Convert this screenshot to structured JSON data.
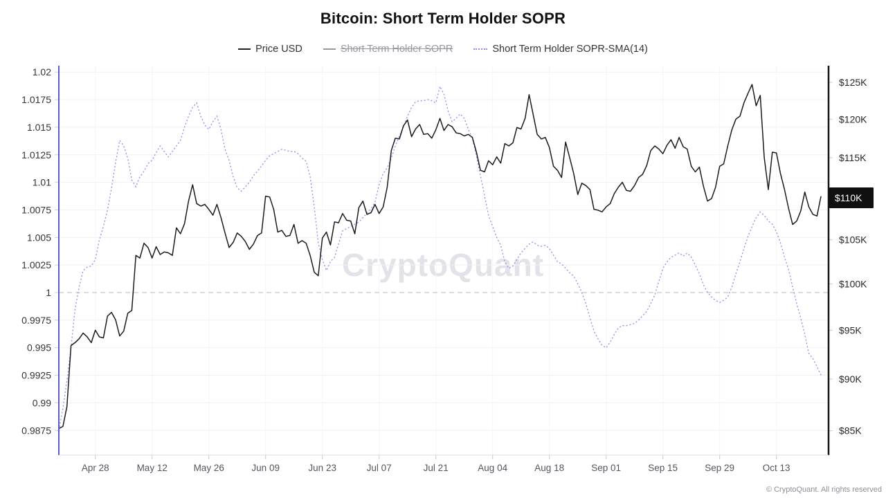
{
  "header": {
    "title": "Bitcoin: Short Term Holder SOPR"
  },
  "legend": [
    {
      "label": "Price USD",
      "color": "#222222",
      "style": "solid",
      "disabled": false
    },
    {
      "label": "Short Term Holder SOPR",
      "color": "#96969e",
      "style": "solid",
      "disabled": true
    },
    {
      "label": "Short Term Holder SOPR-SMA(14)",
      "color": "#8c8cf0",
      "style": "dotted",
      "disabled": false
    }
  ],
  "watermark": "CryptoQuant",
  "footer": "© CryptoQuant. All rights reserved",
  "price_badge": "$110K",
  "colors": {
    "price_line": "#1a1a1a",
    "sma_line": "#8c8cf0",
    "left_spine": "#5c5ccd",
    "right_spine": "#161616",
    "gridline": "#f1f1f4",
    "baseline_dashed": "#c6c6cc",
    "badge_bg": "#101010",
    "badge_text": "#ffffff"
  },
  "axes": {
    "left_ticks": [
      "1.02",
      "1.0175",
      "1.015",
      "1.0125",
      "1.01",
      "1.0075",
      "1.005",
      "1.0025",
      "1",
      "0.9975",
      "0.995",
      "0.9925",
      "0.99",
      "0.9875"
    ],
    "right_ticks": [
      "$125K",
      "$120K",
      "$115K",
      "$110K",
      "$105K",
      "$100K",
      "$95K",
      "$90K",
      "$85K"
    ],
    "x_ticks": [
      "Apr 28",
      "May 12",
      "May 26",
      "Jun 09",
      "Jun 23",
      "Jul 07",
      "Jul 21",
      "Aug 04",
      "Aug 18",
      "Sep 01",
      "Sep 15",
      "Sep 29",
      "Oct 13"
    ]
  },
  "chart_data": {
    "type": "line",
    "title": "Bitcoin: Short Term Holder SOPR",
    "legend_position": "top",
    "grid": true,
    "x_tick_labels": [
      "Apr 28",
      "May 12",
      "May 26",
      "Jun 09",
      "Jun 23",
      "Jul 07",
      "Jul 21",
      "Aug 04",
      "Aug 18",
      "Sep 01",
      "Sep 15",
      "Sep 29",
      "Oct 13"
    ],
    "x_tick_day_index": [
      9,
      23,
      37,
      51,
      65,
      79,
      93,
      107,
      121,
      135,
      149,
      163,
      177
    ],
    "left_axis": {
      "title": "SOPR",
      "scale": "linear",
      "range": [
        0.98625,
        1.0206
      ],
      "baseline": 1.0,
      "tick_step": 0.0025
    },
    "right_axis": {
      "title": "Price USD",
      "scale": "log",
      "range_thousand_usd": [
        84.2,
        126.3
      ],
      "tick_step_thousand_usd": 5
    },
    "series": [
      {
        "name": "Price USD",
        "axis": "right",
        "color": "#1a1a1a",
        "style": "solid",
        "disabled": false,
        "unit": "thousand USD",
        "values": [
          85.2,
          85.4,
          87.3,
          93.4,
          93.7,
          94.1,
          94.7,
          94.3,
          93.7,
          95.0,
          94.3,
          94.2,
          96.5,
          96.9,
          96.1,
          94.4,
          94.9,
          96.8,
          97.1,
          103.2,
          102.9,
          104.6,
          104.1,
          102.9,
          104.2,
          103.3,
          103.6,
          103.5,
          103.2,
          106.4,
          105.7,
          106.9,
          109.6,
          111.6,
          109.3,
          109.0,
          109.2,
          108.6,
          107.9,
          109.2,
          107.6,
          105.8,
          104.1,
          104.7,
          105.8,
          105.4,
          104.8,
          103.9,
          104.5,
          105.5,
          105.8,
          110.2,
          110.1,
          108.6,
          105.9,
          106.1,
          105.4,
          105.5,
          106.8,
          104.6,
          104.9,
          104.6,
          103.2,
          101.3,
          100.9,
          105.2,
          105.9,
          104.4,
          107.1,
          107.0,
          108.1,
          107.3,
          107.2,
          105.7,
          108.8,
          109.6,
          108.0,
          108.2,
          109.2,
          108.1,
          108.9,
          111.3,
          115.9,
          117.5,
          117.4,
          119.1,
          119.9,
          117.7,
          118.7,
          119.3,
          118.0,
          118.1,
          117.5,
          118.6,
          120.1,
          118.5,
          119.3,
          119.0,
          118.2,
          118.1,
          117.8,
          118.0,
          117.6,
          115.7,
          113.4,
          113.2,
          114.6,
          114.1,
          115.1,
          114.3,
          116.8,
          116.5,
          116.9,
          118.9,
          118.7,
          120.1,
          123.3,
          120.6,
          118.0,
          117.4,
          117.6,
          116.3,
          113.9,
          113.4,
          112.5,
          117.0,
          115.0,
          113.0,
          110.4,
          111.8,
          111.5,
          111.0,
          108.6,
          108.5,
          108.3,
          108.9,
          109.3,
          110.5,
          111.3,
          111.9,
          110.9,
          110.8,
          111.5,
          112.5,
          112.9,
          114.0,
          115.9,
          116.5,
          116.1,
          115.5,
          116.6,
          117.3,
          116.2,
          117.6,
          116.4,
          116.1,
          113.9,
          113.2,
          113.8,
          111.4,
          109.6,
          109.9,
          111.3,
          113.9,
          114.2,
          116.5,
          118.6,
          120.0,
          120.4,
          122.2,
          123.5,
          124.7,
          121.8,
          123.2,
          115.0,
          111.0,
          115.7,
          115.6,
          113.0,
          111.0,
          108.7,
          106.8,
          107.2,
          108.4,
          110.7,
          108.9,
          108.0,
          107.8,
          110.2
        ]
      },
      {
        "name": "Short Term Holder SOPR",
        "axis": "left",
        "color": "#96969e",
        "style": "solid",
        "disabled": true,
        "values": []
      },
      {
        "name": "Short Term Holder SOPR-SMA(14)",
        "axis": "left",
        "color": "#8c8cf0",
        "style": "dotted",
        "disabled": false,
        "values": [
          0.9875,
          0.9895,
          0.992,
          0.995,
          0.9985,
          1.0005,
          1.002,
          1.0023,
          1.0024,
          1.003,
          1.0048,
          1.006,
          1.0075,
          1.0095,
          1.0118,
          1.0138,
          1.0133,
          1.0122,
          1.0102,
          1.0096,
          1.0105,
          1.011,
          1.0117,
          1.012,
          1.0127,
          1.0133,
          1.0128,
          1.0123,
          1.0128,
          1.0133,
          1.0138,
          1.015,
          1.016,
          1.0168,
          1.0172,
          1.016,
          1.0152,
          1.0148,
          1.0155,
          1.016,
          1.0148,
          1.013,
          1.012,
          1.0105,
          1.0095,
          1.0092,
          1.0096,
          1.01,
          1.0106,
          1.011,
          1.0115,
          1.012,
          1.0124,
          1.0126,
          1.0128,
          1.013,
          1.0129,
          1.0128,
          1.0128,
          1.0126,
          1.0122,
          1.0119,
          1.0105,
          1.0078,
          1.0045,
          1.003,
          1.002,
          1.0028,
          1.0032,
          1.0044,
          1.0056,
          1.0058,
          1.006,
          1.0062,
          1.0064,
          1.0068,
          1.0072,
          1.0076,
          1.0082,
          1.0098,
          1.0108,
          1.0113,
          1.0122,
          1.0133,
          1.0142,
          1.015,
          1.016,
          1.0168,
          1.0173,
          1.0174,
          1.0174,
          1.0175,
          1.0174,
          1.0172,
          1.0187,
          1.018,
          1.0165,
          1.0155,
          1.0158,
          1.0162,
          1.0158,
          1.0148,
          1.014,
          1.0124,
          1.0106,
          1.0088,
          1.007,
          1.006,
          1.005,
          1.0043,
          1.0028,
          1.0022,
          1.0024,
          1.003,
          1.0036,
          1.004,
          1.0044,
          1.0046,
          1.0043,
          1.0042,
          1.0043,
          1.004,
          1.0034,
          1.0028,
          1.0026,
          1.0022,
          1.0018,
          1.0015,
          1.0008,
          1.0,
          0.999,
          0.9977,
          0.9965,
          0.9958,
          0.9952,
          0.995,
          0.9955,
          0.9962,
          0.9968,
          0.997,
          0.997,
          0.9971,
          0.9972,
          0.9975,
          0.9979,
          0.9983,
          0.999,
          0.9998,
          1.001,
          1.0022,
          1.0028,
          1.0032,
          1.0034,
          1.0036,
          1.0033,
          1.0036,
          1.0032,
          1.0025,
          1.0017,
          1.0007,
          1.0,
          0.9996,
          0.9993,
          0.9991,
          0.9993,
          0.9996,
          1.0005,
          1.0017,
          1.0028,
          1.004,
          1.0051,
          1.006,
          1.0068,
          1.0073,
          1.007,
          1.0065,
          1.0062,
          1.0055,
          1.0045,
          1.0032,
          1.0021,
          1.0005,
          0.999,
          0.9977,
          0.9962,
          0.9945,
          0.994,
          0.9933,
          0.9925
        ]
      }
    ]
  }
}
